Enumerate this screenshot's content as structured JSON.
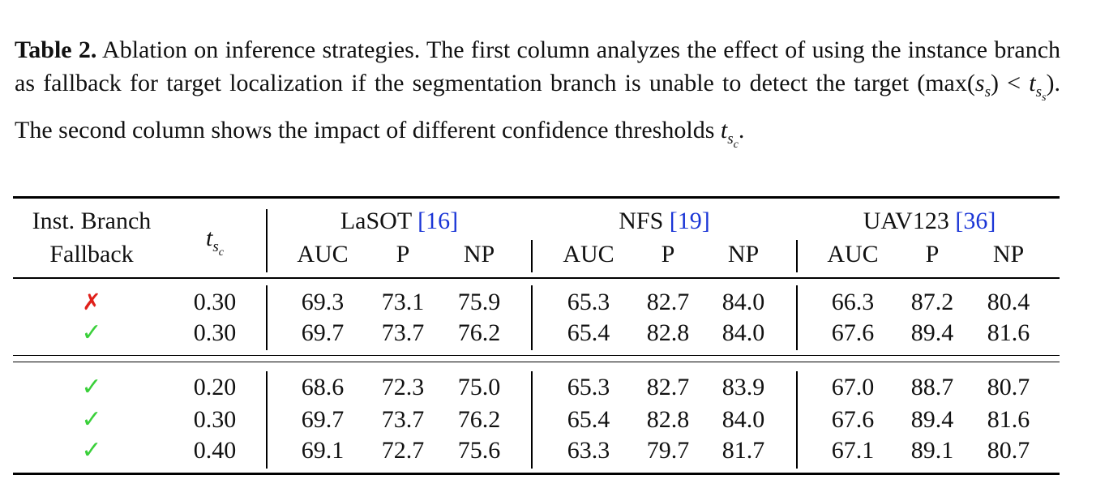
{
  "caption": {
    "label": "Table 2.",
    "text_1": " Ablation on inference strategies. The first column analyzes the effect of using the instance branch as fallback for target localization if the segmentation branch is unable to detect the target (max(",
    "math_ss": "s",
    "math_ss_sub": "s",
    "text_2": ") < ",
    "math_t": "t",
    "math_t_sub": "s",
    "math_t_subsub": "s",
    "text_3": "). The second column shows the impact of different confidence thresholds ",
    "math_tsc": "t",
    "math_tsc_sub": "s",
    "math_tsc_subsub": "c",
    "text_4": "."
  },
  "table": {
    "header": {
      "col1_line1": "Inst. Branch",
      "col1_line2": "Fallback",
      "col2_t": "t",
      "col2_sub": "s",
      "col2_subsub": "c",
      "groups": [
        {
          "name": "LaSOT ",
          "cite": "[16]"
        },
        {
          "name": "NFS ",
          "cite": "[19]"
        },
        {
          "name": "UAV123 ",
          "cite": "[36]"
        }
      ],
      "metrics": [
        "AUC",
        "P",
        "NP",
        "AUC",
        "P",
        "NP",
        "AUC",
        "P",
        "NP"
      ]
    },
    "rows": [
      {
        "fallback": "✗",
        "fallback_type": "cross",
        "t": "0.30",
        "v": [
          "69.3",
          "73.1",
          "75.9",
          "65.3",
          "82.7",
          "84.0",
          "66.3",
          "87.2",
          "80.4"
        ]
      },
      {
        "fallback": "✓",
        "fallback_type": "check",
        "t": "0.30",
        "v": [
          "69.7",
          "73.7",
          "76.2",
          "65.4",
          "82.8",
          "84.0",
          "67.6",
          "89.4",
          "81.6"
        ]
      },
      {
        "fallback": "✓",
        "fallback_type": "check",
        "t": "0.20",
        "v": [
          "68.6",
          "72.3",
          "75.0",
          "65.3",
          "82.7",
          "83.9",
          "67.0",
          "88.7",
          "80.7"
        ]
      },
      {
        "fallback": "✓",
        "fallback_type": "check",
        "t": "0.30",
        "v": [
          "69.7",
          "73.7",
          "76.2",
          "65.4",
          "82.8",
          "84.0",
          "67.6",
          "89.4",
          "81.6"
        ]
      },
      {
        "fallback": "✓",
        "fallback_type": "check",
        "t": "0.40",
        "v": [
          "69.1",
          "72.7",
          "75.6",
          "63.3",
          "79.7",
          "81.7",
          "67.1",
          "89.1",
          "80.7"
        ]
      }
    ],
    "colors": {
      "cross": "#e0201a",
      "check": "#3ad03a",
      "cite": "#1a35d6"
    }
  }
}
